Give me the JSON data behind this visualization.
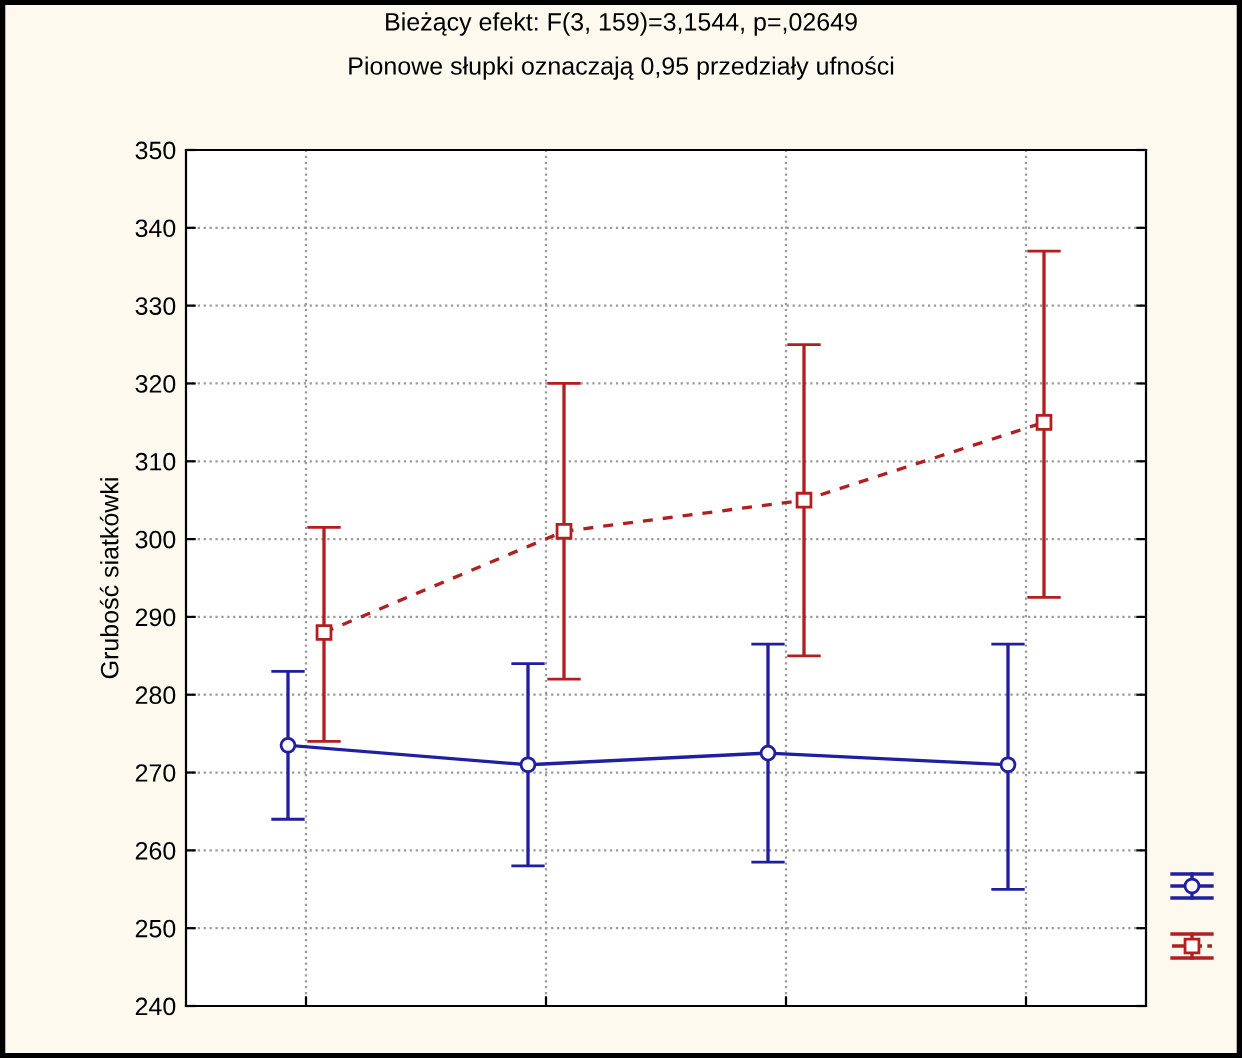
{
  "chart_data": {
    "type": "line",
    "title": "Bieżący efekt: F(3, 159)=3,1544, p=,02649",
    "subtitle": "Pionowe słupki oznaczają 0,95 przedziały ufności",
    "ylabel": "Grubość siatkówki",
    "categories": [
      null,
      null,
      null,
      null
    ],
    "series": [
      {
        "color": "#1f1fa0",
        "values": [
          273.5,
          271,
          272.5,
          271
        ],
        "errors": [
          [
            264,
            283
          ],
          [
            258,
            284
          ],
          [
            258.5,
            286.5
          ],
          [
            255,
            286.5
          ]
        ],
        "marker": "circle",
        "line_style": "solid"
      },
      {
        "color": "#b02020",
        "values": [
          288,
          301,
          305,
          315
        ],
        "errors": [
          [
            274,
            301.5
          ],
          [
            282,
            320
          ],
          [
            285,
            325
          ],
          [
            292.5,
            337
          ]
        ],
        "marker": "square",
        "line_style": "dashed"
      }
    ],
    "ylim": [
      240,
      350
    ],
    "yticks": [
      240,
      250,
      260,
      270,
      280,
      290,
      300,
      310,
      320,
      330,
      340,
      350
    ],
    "grid": true
  }
}
